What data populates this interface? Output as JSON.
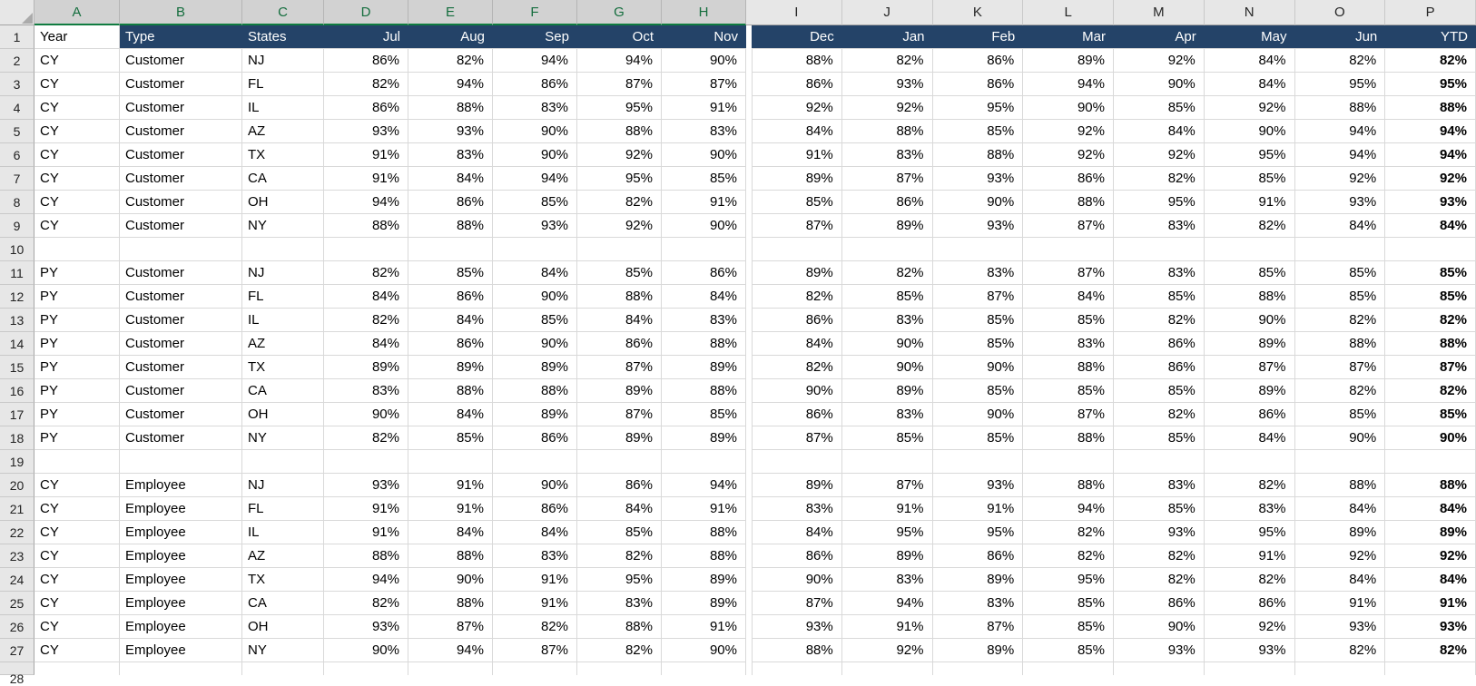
{
  "sheet": {
    "column_letters": [
      "A",
      "B",
      "C",
      "D",
      "E",
      "F",
      "G",
      "H",
      "I",
      "J",
      "K",
      "L",
      "M",
      "N",
      "O",
      "P"
    ],
    "selected_columns": [
      "A",
      "B",
      "C",
      "D",
      "E",
      "F",
      "G",
      "H"
    ],
    "partial_row_number": "28",
    "header_row": {
      "n": "1",
      "cells": [
        "Year",
        "Type",
        "States",
        "Jul",
        "Aug",
        "Sep",
        "Oct",
        "Nov",
        "Dec",
        "Jan",
        "Feb",
        "Mar",
        "Apr",
        "May",
        "Jun",
        "YTD"
      ]
    },
    "rows": [
      {
        "n": "2",
        "year": "CY",
        "type": "Customer",
        "state": "NJ",
        "values": [
          "86%",
          "82%",
          "94%",
          "94%",
          "90%",
          "88%",
          "82%",
          "86%",
          "89%",
          "92%",
          "84%",
          "82%",
          "82%"
        ]
      },
      {
        "n": "3",
        "year": "CY",
        "type": "Customer",
        "state": "FL",
        "values": [
          "82%",
          "94%",
          "86%",
          "87%",
          "87%",
          "86%",
          "93%",
          "86%",
          "94%",
          "90%",
          "84%",
          "95%",
          "95%"
        ]
      },
      {
        "n": "4",
        "year": "CY",
        "type": "Customer",
        "state": "IL",
        "values": [
          "86%",
          "88%",
          "83%",
          "95%",
          "91%",
          "92%",
          "92%",
          "95%",
          "90%",
          "85%",
          "92%",
          "88%",
          "88%"
        ]
      },
      {
        "n": "5",
        "year": "CY",
        "type": "Customer",
        "state": "AZ",
        "values": [
          "93%",
          "93%",
          "90%",
          "88%",
          "83%",
          "84%",
          "88%",
          "85%",
          "92%",
          "84%",
          "90%",
          "94%",
          "94%"
        ]
      },
      {
        "n": "6",
        "year": "CY",
        "type": "Customer",
        "state": "TX",
        "values": [
          "91%",
          "83%",
          "90%",
          "92%",
          "90%",
          "91%",
          "83%",
          "88%",
          "92%",
          "92%",
          "95%",
          "94%",
          "94%"
        ]
      },
      {
        "n": "7",
        "year": "CY",
        "type": "Customer",
        "state": "CA",
        "values": [
          "91%",
          "84%",
          "94%",
          "95%",
          "85%",
          "89%",
          "87%",
          "93%",
          "86%",
          "82%",
          "85%",
          "92%",
          "92%"
        ]
      },
      {
        "n": "8",
        "year": "CY",
        "type": "Customer",
        "state": "OH",
        "values": [
          "94%",
          "86%",
          "85%",
          "82%",
          "91%",
          "85%",
          "86%",
          "90%",
          "88%",
          "95%",
          "91%",
          "93%",
          "93%"
        ]
      },
      {
        "n": "9",
        "year": "CY",
        "type": "Customer",
        "state": "NY",
        "values": [
          "88%",
          "88%",
          "93%",
          "92%",
          "90%",
          "87%",
          "89%",
          "93%",
          "87%",
          "83%",
          "82%",
          "84%",
          "84%"
        ]
      },
      {
        "n": "10",
        "empty": true
      },
      {
        "n": "11",
        "year": "PY",
        "type": "Customer",
        "state": "NJ",
        "values": [
          "82%",
          "85%",
          "84%",
          "85%",
          "86%",
          "89%",
          "82%",
          "83%",
          "87%",
          "83%",
          "85%",
          "85%",
          "85%"
        ]
      },
      {
        "n": "12",
        "year": "PY",
        "type": "Customer",
        "state": "FL",
        "values": [
          "84%",
          "86%",
          "90%",
          "88%",
          "84%",
          "82%",
          "85%",
          "87%",
          "84%",
          "85%",
          "88%",
          "85%",
          "85%"
        ]
      },
      {
        "n": "13",
        "year": "PY",
        "type": "Customer",
        "state": "IL",
        "values": [
          "82%",
          "84%",
          "85%",
          "84%",
          "83%",
          "86%",
          "83%",
          "85%",
          "85%",
          "82%",
          "90%",
          "82%",
          "82%"
        ]
      },
      {
        "n": "14",
        "year": "PY",
        "type": "Customer",
        "state": "AZ",
        "values": [
          "84%",
          "86%",
          "90%",
          "86%",
          "88%",
          "84%",
          "90%",
          "85%",
          "83%",
          "86%",
          "89%",
          "88%",
          "88%"
        ]
      },
      {
        "n": "15",
        "year": "PY",
        "type": "Customer",
        "state": "TX",
        "values": [
          "89%",
          "89%",
          "89%",
          "87%",
          "89%",
          "82%",
          "90%",
          "90%",
          "88%",
          "86%",
          "87%",
          "87%",
          "87%"
        ]
      },
      {
        "n": "16",
        "year": "PY",
        "type": "Customer",
        "state": "CA",
        "values": [
          "83%",
          "88%",
          "88%",
          "89%",
          "88%",
          "90%",
          "89%",
          "85%",
          "85%",
          "85%",
          "89%",
          "82%",
          "82%"
        ]
      },
      {
        "n": "17",
        "year": "PY",
        "type": "Customer",
        "state": "OH",
        "values": [
          "90%",
          "84%",
          "89%",
          "87%",
          "85%",
          "86%",
          "83%",
          "90%",
          "87%",
          "82%",
          "86%",
          "85%",
          "85%"
        ]
      },
      {
        "n": "18",
        "year": "PY",
        "type": "Customer",
        "state": "NY",
        "values": [
          "82%",
          "85%",
          "86%",
          "89%",
          "89%",
          "87%",
          "85%",
          "85%",
          "88%",
          "85%",
          "84%",
          "90%",
          "90%"
        ]
      },
      {
        "n": "19",
        "empty": true
      },
      {
        "n": "20",
        "year": "CY",
        "type": "Employee",
        "state": "NJ",
        "values": [
          "93%",
          "91%",
          "90%",
          "86%",
          "94%",
          "89%",
          "87%",
          "93%",
          "88%",
          "83%",
          "82%",
          "88%",
          "88%"
        ]
      },
      {
        "n": "21",
        "year": "CY",
        "type": "Employee",
        "state": "FL",
        "values": [
          "91%",
          "91%",
          "86%",
          "84%",
          "91%",
          "83%",
          "91%",
          "91%",
          "94%",
          "85%",
          "83%",
          "84%",
          "84%"
        ]
      },
      {
        "n": "22",
        "year": "CY",
        "type": "Employee",
        "state": "IL",
        "values": [
          "91%",
          "84%",
          "84%",
          "85%",
          "88%",
          "84%",
          "95%",
          "95%",
          "82%",
          "93%",
          "95%",
          "89%",
          "89%"
        ]
      },
      {
        "n": "23",
        "year": "CY",
        "type": "Employee",
        "state": "AZ",
        "values": [
          "88%",
          "88%",
          "83%",
          "82%",
          "88%",
          "86%",
          "89%",
          "86%",
          "82%",
          "82%",
          "91%",
          "92%",
          "92%"
        ]
      },
      {
        "n": "24",
        "year": "CY",
        "type": "Employee",
        "state": "TX",
        "values": [
          "94%",
          "90%",
          "91%",
          "95%",
          "89%",
          "90%",
          "83%",
          "89%",
          "95%",
          "82%",
          "82%",
          "84%",
          "84%"
        ]
      },
      {
        "n": "25",
        "year": "CY",
        "type": "Employee",
        "state": "CA",
        "values": [
          "82%",
          "88%",
          "91%",
          "83%",
          "89%",
          "87%",
          "94%",
          "83%",
          "85%",
          "86%",
          "86%",
          "91%",
          "91%"
        ]
      },
      {
        "n": "26",
        "year": "CY",
        "type": "Employee",
        "state": "OH",
        "values": [
          "93%",
          "87%",
          "82%",
          "88%",
          "91%",
          "93%",
          "91%",
          "87%",
          "85%",
          "90%",
          "92%",
          "93%",
          "93%"
        ]
      },
      {
        "n": "27",
        "year": "CY",
        "type": "Employee",
        "state": "NY",
        "values": [
          "90%",
          "94%",
          "87%",
          "82%",
          "90%",
          "88%",
          "92%",
          "89%",
          "85%",
          "93%",
          "93%",
          "82%",
          "82%"
        ]
      }
    ]
  },
  "colors": {
    "navy": "#244368",
    "header_bg": "#E7E7E7",
    "header_bg_selected": "#D2D2D2",
    "selection_green": "#107C41",
    "selection_green_text": "#156E3E",
    "gridline": "#D9D9D9",
    "strip_border": "#A3A3A3",
    "row_header_border": "#A6A6A6",
    "letter_color": "#262626",
    "triangle": "#ABABAB"
  }
}
